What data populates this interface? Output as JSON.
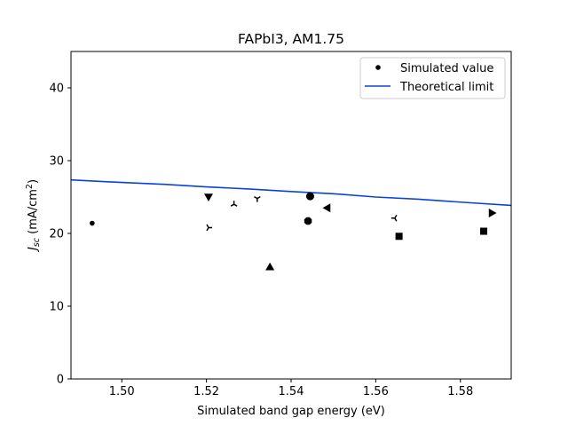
{
  "chart_data": {
    "type": "scatter",
    "title": "FAPbI3, AM1.75",
    "xlabel": "Simulated band gap energy (eV)",
    "ylabel": {
      "symbol": "J",
      "subscript": "sc",
      "unit_prefix": " (mA/cm",
      "unit_exp": "2",
      "unit_suffix": ")"
    },
    "xlim": [
      1.488,
      1.592
    ],
    "ylim": [
      0,
      45
    ],
    "xticks": [
      "1.50",
      "1.52",
      "1.54",
      "1.56",
      "1.58"
    ],
    "yticks": [
      "0",
      "10",
      "20",
      "30",
      "40"
    ],
    "grid": false,
    "legend": {
      "position": "top-right",
      "entries": [
        "Simulated value",
        "Theoretical limit"
      ]
    },
    "series": [
      {
        "name": "Simulated value",
        "kind": "scatter",
        "color": "#000000",
        "points": [
          {
            "x": 1.493,
            "y": 21.4,
            "marker": "point"
          },
          {
            "x": 1.5205,
            "y": 25.0,
            "marker": "triangle-down"
          },
          {
            "x": 1.5205,
            "y": 20.8,
            "marker": "tri-right"
          },
          {
            "x": 1.5265,
            "y": 24.0,
            "marker": "tri-up"
          },
          {
            "x": 1.532,
            "y": 24.8,
            "marker": "tri-down"
          },
          {
            "x": 1.535,
            "y": 15.4,
            "marker": "triangle-up"
          },
          {
            "x": 1.544,
            "y": 21.7,
            "marker": "octagon"
          },
          {
            "x": 1.5445,
            "y": 25.1,
            "marker": "circle"
          },
          {
            "x": 1.5485,
            "y": 23.5,
            "marker": "triangle-left"
          },
          {
            "x": 1.5645,
            "y": 22.1,
            "marker": "tri-left"
          },
          {
            "x": 1.5655,
            "y": 19.6,
            "marker": "square"
          },
          {
            "x": 1.5855,
            "y": 20.3,
            "marker": "square"
          },
          {
            "x": 1.5875,
            "y": 22.8,
            "marker": "triangle-right"
          }
        ]
      },
      {
        "name": "Theoretical limit",
        "kind": "line",
        "color": "#0b43d9",
        "points": [
          {
            "x": 1.488,
            "y": 27.35
          },
          {
            "x": 1.5,
            "y": 27.0
          },
          {
            "x": 1.51,
            "y": 26.75
          },
          {
            "x": 1.52,
            "y": 26.4
          },
          {
            "x": 1.53,
            "y": 26.1
          },
          {
            "x": 1.54,
            "y": 25.75
          },
          {
            "x": 1.55,
            "y": 25.45
          },
          {
            "x": 1.56,
            "y": 25.0
          },
          {
            "x": 1.57,
            "y": 24.7
          },
          {
            "x": 1.58,
            "y": 24.3
          },
          {
            "x": 1.592,
            "y": 23.85
          }
        ]
      }
    ]
  }
}
